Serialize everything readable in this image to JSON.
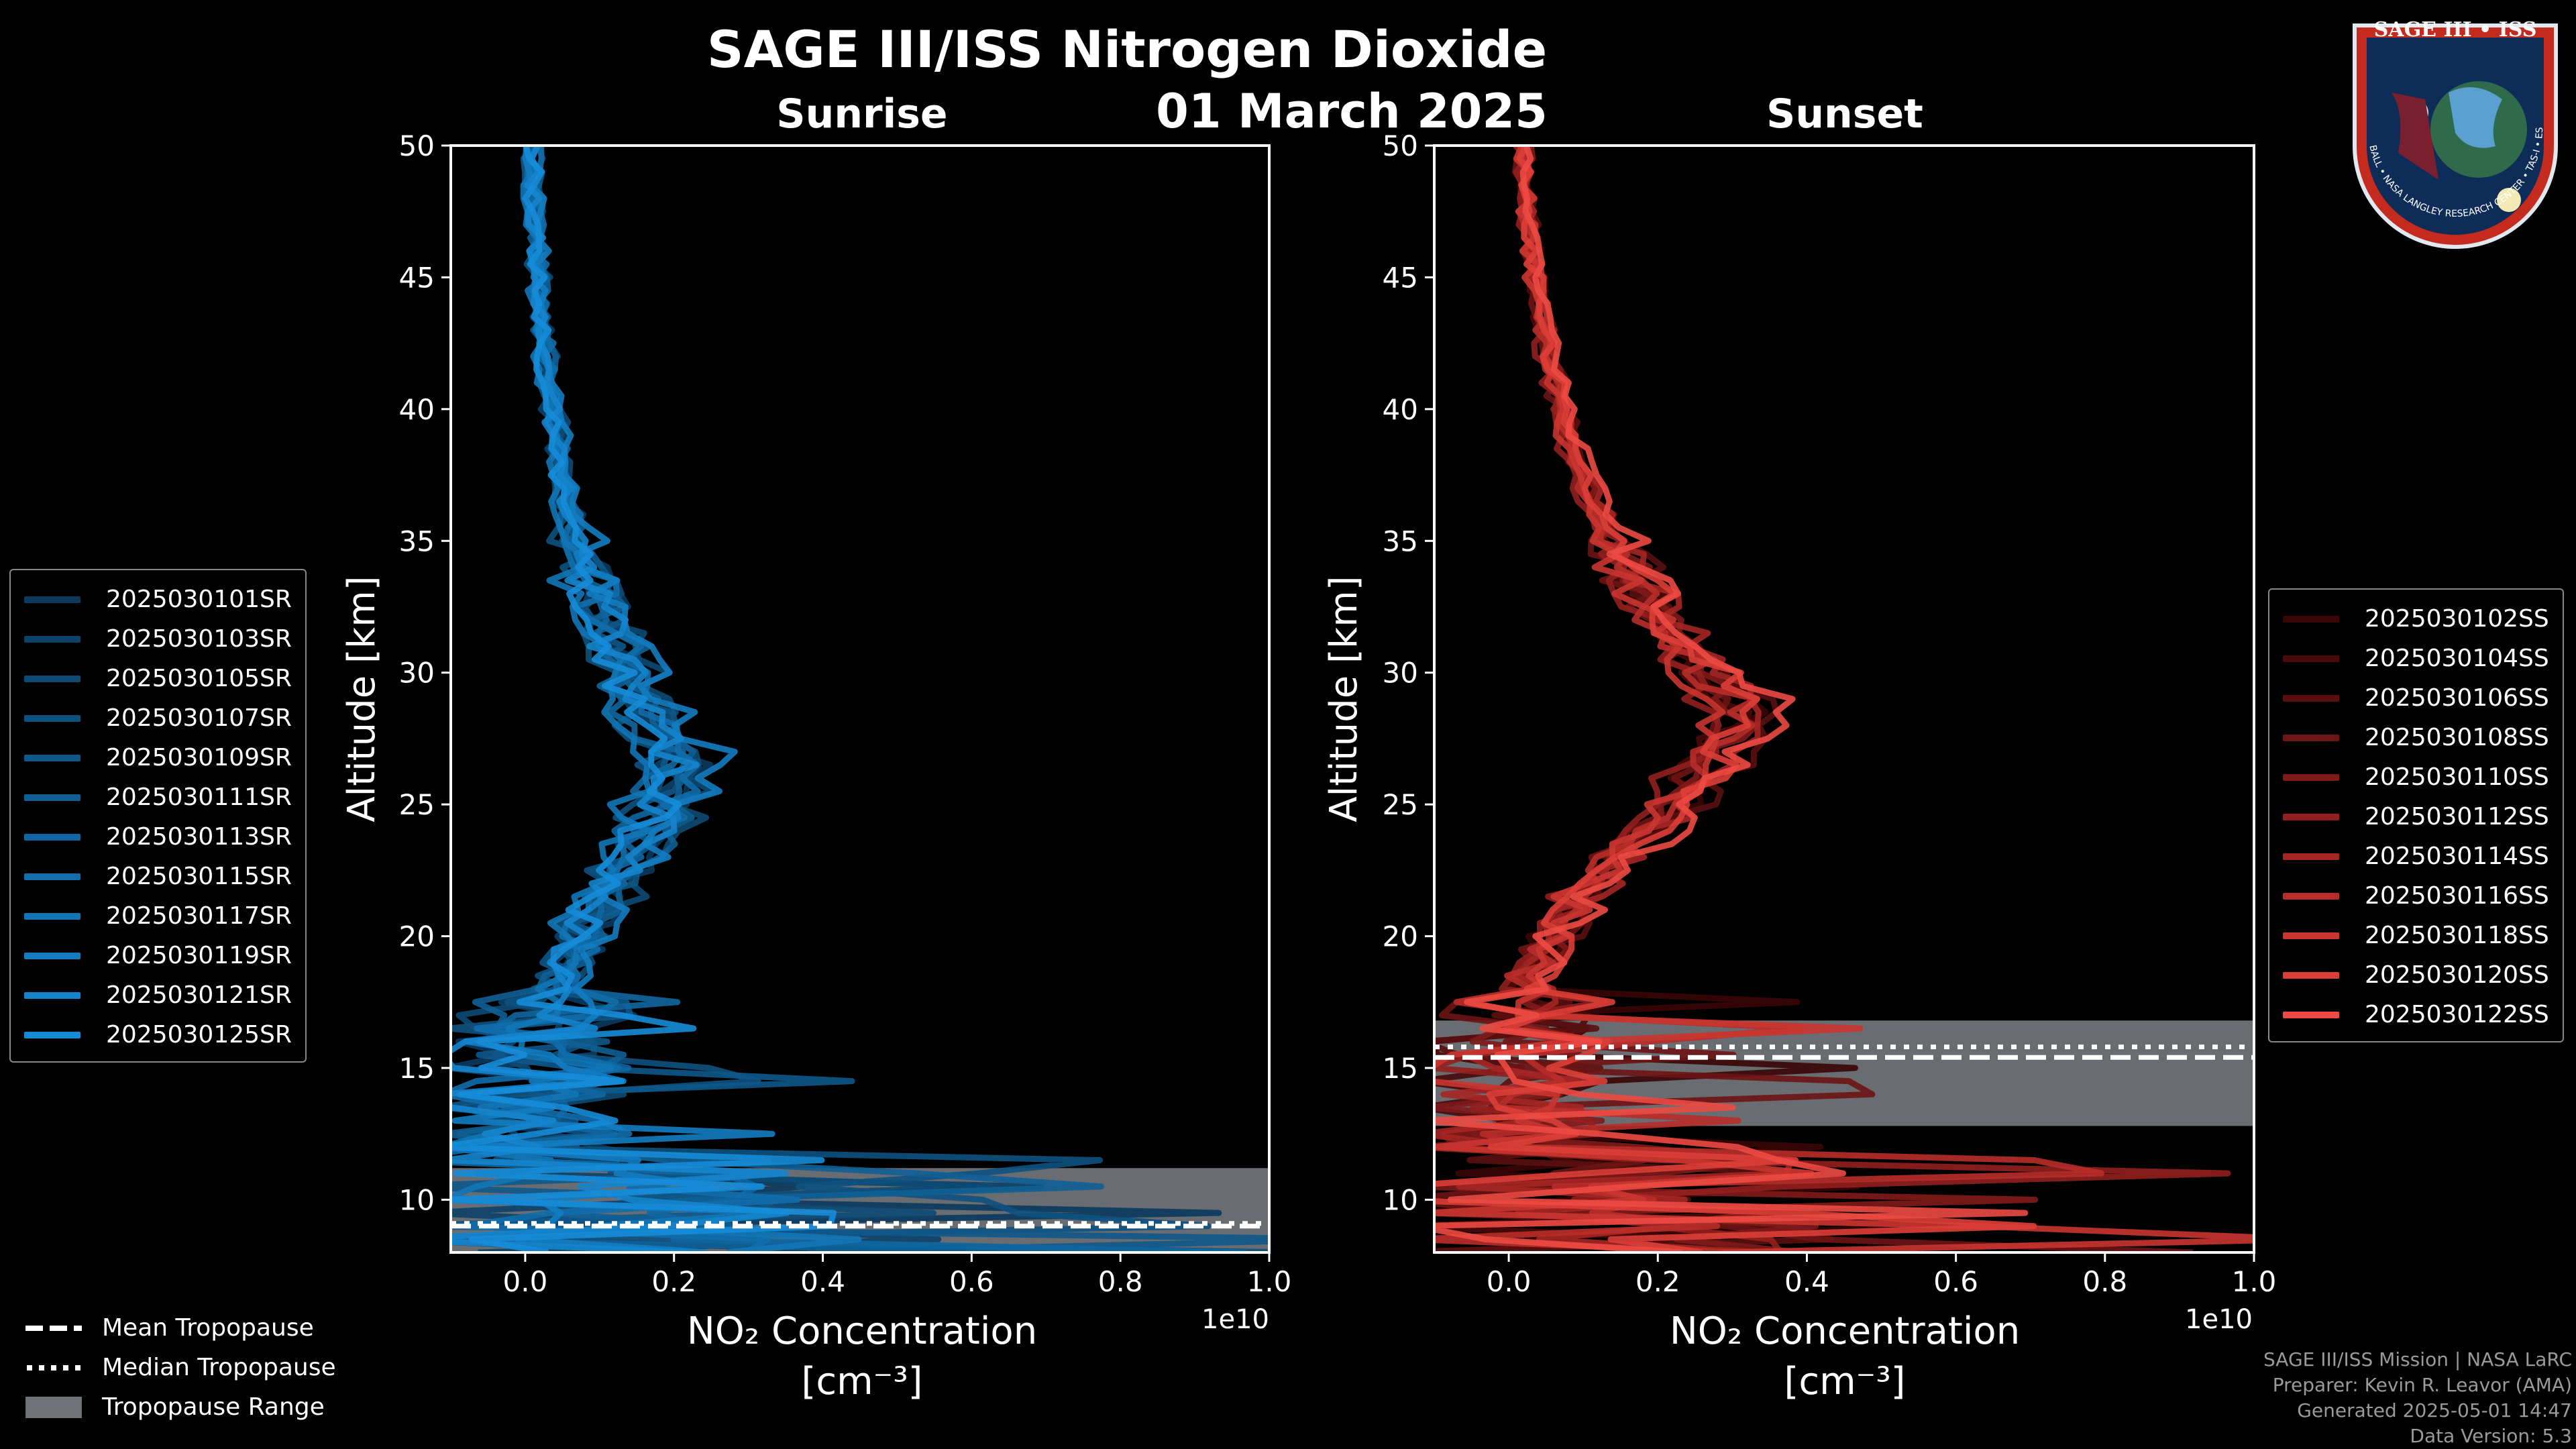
{
  "title": "SAGE III/ISS Nitrogen Dioxide",
  "date": "01 March 2025",
  "logo": {
    "name": "SAGE III • ISS",
    "ring_text": "BALL • NASA LANGLEY RESEARCH CENTER • TAS-I • ESA"
  },
  "credits": {
    "line1": "SAGE III/ISS Mission | NASA LaRC",
    "line2": "Preparer: Kevin R. Leavor (AMA)",
    "line3": "Generated 2025-05-01 14:47",
    "line4": "Data Version: 5.3"
  },
  "bottom_legend": {
    "mean": "Mean Tropopause",
    "median": "Median Tropopause",
    "range": "Tropopause Range"
  },
  "chart_data": [
    {
      "type": "line",
      "title": "Sunrise",
      "xlabel": "NO₂ Concentration",
      "xunit": "[cm⁻³]",
      "ylabel": "Altitude [km]",
      "offset_text": "1e10",
      "xlim": [
        -0.1,
        1.0
      ],
      "ylim": [
        8,
        50
      ],
      "xticks": [
        "0.0",
        "0.2",
        "0.4",
        "0.6",
        "0.8",
        "1.0"
      ],
      "yticks": [
        "10",
        "15",
        "20",
        "25",
        "30",
        "35",
        "40",
        "45",
        "50"
      ],
      "tropopause": {
        "range": [
          7.8,
          11.2
        ],
        "mean": 9.0,
        "median": 9.1
      },
      "series_colors": [
        "#0b3a5e",
        "#0c4369",
        "#0c4a74",
        "#0d517f",
        "#0e588a",
        "#0f5f95",
        "#1066a0",
        "#116dab",
        "#1275b6",
        "#137cc1",
        "#1584cc",
        "#168cd8"
      ],
      "series": [
        {
          "name": "2025030101SR",
          "peak": 0.22
        },
        {
          "name": "2025030103SR",
          "peak": 0.19
        },
        {
          "name": "2025030105SR",
          "peak": 0.24
        },
        {
          "name": "2025030107SR",
          "peak": 0.17
        },
        {
          "name": "2025030109SR",
          "peak": 0.2
        },
        {
          "name": "2025030111SR",
          "peak": 0.23
        },
        {
          "name": "2025030113SR",
          "peak": 0.18
        },
        {
          "name": "2025030115SR",
          "peak": 0.21
        },
        {
          "name": "2025030117SR",
          "peak": 0.16
        },
        {
          "name": "2025030119SR",
          "peak": 0.25
        },
        {
          "name": "2025030121SR",
          "peak": 0.2
        },
        {
          "name": "2025030125SR",
          "peak": 0.19
        }
      ]
    },
    {
      "type": "line",
      "title": "Sunset",
      "xlabel": "NO₂ Concentration",
      "xunit": "[cm⁻³]",
      "ylabel": "Altitude [km]",
      "offset_text": "1e10",
      "xlim": [
        -0.1,
        1.0
      ],
      "ylim": [
        8,
        50
      ],
      "xticks": [
        "0.0",
        "0.2",
        "0.4",
        "0.6",
        "0.8",
        "1.0"
      ],
      "yticks": [
        "10",
        "15",
        "20",
        "25",
        "30",
        "35",
        "40",
        "45",
        "50"
      ],
      "tropopause": {
        "range": [
          12.8,
          16.8
        ],
        "mean": 15.4,
        "median": 15.8
      },
      "series_colors": [
        "#3a0606",
        "#4a0a0a",
        "#5a0f0f",
        "#6d1414",
        "#7f1a19",
        "#921f1e",
        "#a52624",
        "#b82d2a",
        "#ca3530",
        "#db3e37",
        "#ec4a42"
      ],
      "series": [
        {
          "name": "2025030102SS",
          "peak": 0.32
        },
        {
          "name": "2025030104SS",
          "peak": 0.3
        },
        {
          "name": "2025030106SS",
          "peak": 0.34
        },
        {
          "name": "2025030108SS",
          "peak": 0.29
        },
        {
          "name": "2025030110SS",
          "peak": 0.31
        },
        {
          "name": "2025030112SS",
          "peak": 0.27
        },
        {
          "name": "2025030114SS",
          "peak": 0.33
        },
        {
          "name": "2025030116SS",
          "peak": 0.3
        },
        {
          "name": "2025030118SS",
          "peak": 0.28
        },
        {
          "name": "2025030120SS",
          "peak": 0.32
        },
        {
          "name": "2025030122SS",
          "peak": 0.35
        }
      ]
    }
  ]
}
